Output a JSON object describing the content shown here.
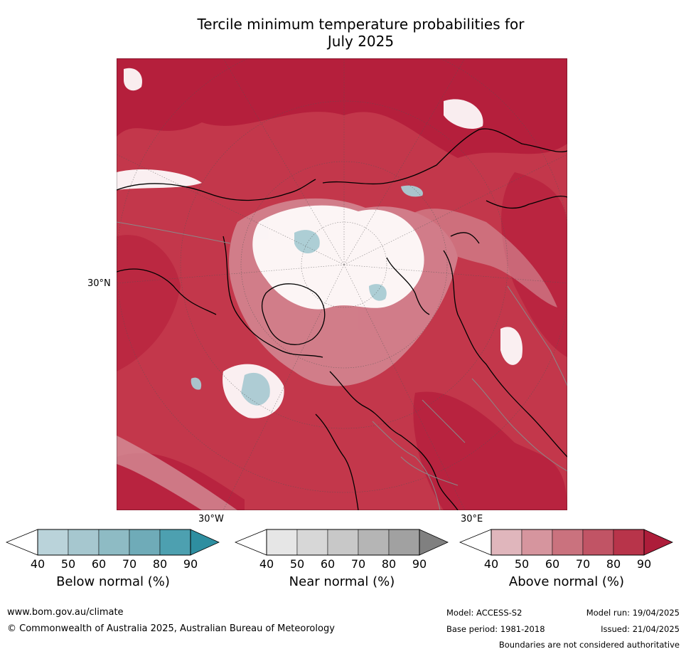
{
  "title": {
    "line1": "Tercile minimum temperature probabilities for",
    "line2": "July 2025"
  },
  "map": {
    "labels": {
      "lat_30n": "30°N",
      "lon_30w": "30°W",
      "lon_30e": "30°E"
    },
    "colors": {
      "ocean": "#c3374b",
      "land": "#c94458",
      "warm_strong": "#b41d3b",
      "near_normal": "#ffffff",
      "cool": "#a9cbd3",
      "coast": "#000000",
      "border": "#8a8a8a"
    }
  },
  "legends": [
    {
      "caption": "Below normal (%)",
      "ticks": [
        "40",
        "50",
        "60",
        "70",
        "80",
        "90"
      ],
      "colors": [
        "#ffffff",
        "#bad3da",
        "#a6c7cf",
        "#8ebbc4",
        "#6fabb8",
        "#4da0b0",
        "#2e8ea0"
      ]
    },
    {
      "caption": "Near normal (%)",
      "ticks": [
        "40",
        "50",
        "60",
        "70",
        "80",
        "90"
      ],
      "colors": [
        "#ffffff",
        "#e6e6e6",
        "#d7d7d7",
        "#c8c8c8",
        "#b5b5b5",
        "#a1a1a1",
        "#808080"
      ]
    },
    {
      "caption": "Above normal (%)",
      "ticks": [
        "40",
        "50",
        "60",
        "70",
        "80",
        "90"
      ],
      "colors": [
        "#ffffff",
        "#e0b6bc",
        "#d6959e",
        "#ca727e",
        "#c15465",
        "#b8344a",
        "#ad1d3a"
      ]
    }
  ],
  "footer": {
    "url": "www.bom.gov.au/climate",
    "copyright": "© Commonwealth of Australia 2025, Australian Bureau of Meteorology",
    "model": "Model: ACCESS-S2",
    "model_run": "Model run: 19/04/2025",
    "base_period": "Base period: 1981-2018",
    "issued": "Issued: 21/04/2025",
    "disclaimer": "Boundaries are not considered authoritative"
  }
}
